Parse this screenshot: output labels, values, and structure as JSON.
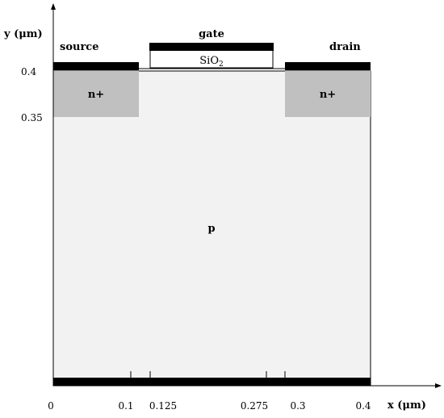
{
  "axes": {
    "y_label": "y (μm)",
    "x_label": "x (μm)",
    "y_ticks": [
      "0.4",
      "0.35"
    ],
    "x_ticks": [
      "0",
      "0.1",
      "0.125",
      "0.275",
      "0.3",
      "0.4"
    ]
  },
  "regions": {
    "substrate": "p",
    "source_doping": "n+",
    "drain_doping": "n+",
    "oxide": "SiO",
    "oxide_subscript": "2"
  },
  "contacts": {
    "source": "source",
    "gate": "gate",
    "drain": "drain"
  },
  "colors": {
    "substrate": "#f2f2f2",
    "doped": "#c0c0c0",
    "contact": "#000000",
    "oxide": "#ffffff"
  }
}
